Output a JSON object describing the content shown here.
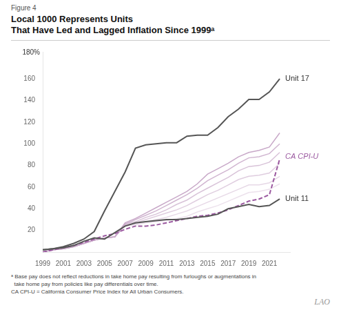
{
  "chart_data": {
    "type": "line",
    "subtitle": "Figure 4",
    "title": [
      "Local 1000 Represents Units",
      "That Have Led and Lagged Inflation Since 1999ᵃ"
    ],
    "notes": [
      "ᵃ Base pay does not reflect reductions in take home pay resulting from furloughs or augmentations in",
      "  take home pay from policies like pay differentials over time.",
      "CA CPI-U = California Consumer Price Index for All Urban Consumers."
    ],
    "credit": "LAO",
    "x": [
      1999,
      2000,
      2001,
      2002,
      2003,
      2004,
      2005,
      2006,
      2007,
      2008,
      2009,
      2010,
      2011,
      2012,
      2013,
      2014,
      2015,
      2016,
      2017,
      2018,
      2019,
      2020,
      2021,
      2022
    ],
    "series": [
      {
        "color": "#c8a8c8",
        "values": [
          0,
          2,
          3,
          5,
          8,
          11,
          13,
          14,
          27,
          31,
          36,
          41,
          46,
          51,
          56,
          63,
          72,
          77,
          82,
          88,
          92,
          94,
          97,
          110
        ]
      },
      {
        "color": "#c8a8c8",
        "values": [
          0,
          2,
          3,
          5,
          8,
          11,
          13,
          14,
          26,
          30,
          34,
          38,
          43,
          48,
          53,
          59,
          66,
          71,
          76,
          82,
          87,
          88,
          91,
          100
        ]
      },
      {
        "color": "#c8a8c8",
        "values": [
          0,
          2,
          3,
          5,
          8,
          11,
          13,
          14,
          26,
          28,
          32,
          35,
          39,
          44,
          48,
          54,
          59,
          64,
          69,
          75,
          79,
          80,
          83,
          92
        ]
      },
      {
        "color": "#c8a8c8",
        "values": [
          0,
          2,
          3,
          5,
          8,
          11,
          13,
          14,
          25,
          27,
          30,
          33,
          36,
          39,
          43,
          48,
          53,
          57,
          62,
          67,
          70,
          71,
          73,
          82
        ]
      },
      {
        "color": "#c8a8c8",
        "values": [
          0,
          2,
          3,
          5,
          8,
          11,
          13,
          14,
          25,
          26,
          28,
          30,
          32,
          35,
          38,
          42,
          46,
          50,
          54,
          58,
          62,
          62,
          64,
          70
        ]
      },
      {
        "color": "#c8a8c8",
        "values": [
          0,
          2,
          3,
          5,
          8,
          11,
          13,
          14,
          24,
          25,
          27,
          28,
          29,
          31,
          33,
          37,
          40,
          43,
          47,
          51,
          55,
          56,
          58,
          63
        ]
      },
      {
        "color": "#9b59a0",
        "line_style": "dashed",
        "values": [
          0,
          2,
          4,
          6,
          9,
          12,
          15,
          17,
          21,
          24,
          24,
          25,
          27,
          29,
          31,
          33,
          34,
          36,
          39,
          43,
          47,
          49,
          53,
          86
        ]
      },
      {
        "color": "#555555",
        "values": [
          2,
          3,
          5,
          8,
          12,
          19,
          38,
          56,
          74,
          96,
          99,
          100,
          101,
          101,
          107,
          108,
          108,
          115,
          125,
          132,
          141,
          141,
          148,
          160
        ]
      },
      {
        "color": "#555555",
        "values": [
          2,
          3,
          4,
          6,
          10,
          13,
          12,
          18,
          24,
          27,
          28,
          29,
          30,
          30,
          31,
          32,
          33,
          35,
          40,
          42,
          44,
          42,
          43,
          49
        ]
      }
    ],
    "annotations": [
      {
        "text": "180%",
        "x": 1999,
        "y": 181
      },
      {
        "text": "Unit 17",
        "x": 2022.2,
        "y": 160
      },
      {
        "text": "Unit 11",
        "x": 2022.2,
        "y": 49
      },
      {
        "text": "CA CPI-U",
        "x": 2022.2,
        "y": 88,
        "color": "#9b59a0"
      }
    ],
    "xlim": [
      1999,
      2023
    ],
    "ylim": [
      0,
      185
    ],
    "xticks": [
      1999,
      2001,
      2003,
      2005,
      2007,
      2009,
      2011,
      2013,
      2015,
      2017,
      2019,
      2021
    ],
    "yticks": [
      20,
      40,
      60,
      80,
      100,
      120,
      140,
      160
    ],
    "grid": false
  }
}
